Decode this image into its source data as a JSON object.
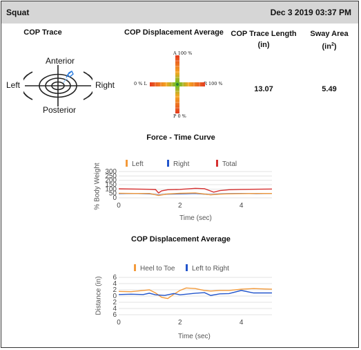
{
  "header": {
    "title": "Squat",
    "datetime": "Dec 3 2019 03:37 PM"
  },
  "columns": {
    "cop_trace": "COP Trace",
    "cop_displacement": "COP Displacement Average",
    "trace_length_label": "COP Trace Length (in)",
    "sway_area_label": "Sway Area (in",
    "sway_area_sup": "2",
    "sway_area_close": ")"
  },
  "target": {
    "anterior": "Anterior",
    "posterior": "Posterior",
    "left": "Left",
    "right": "Right"
  },
  "displacement_gauge": {
    "top": "A 100 %",
    "bottom": "P 0 %",
    "left": "0 %  L",
    "right": "R 100 %"
  },
  "values": {
    "trace_length": "13.07",
    "sway_area": "5.49"
  },
  "force_chart": {
    "title": "Force - Time Curve",
    "xlabel": "Time (sec)",
    "ylabel": "% Body Weight",
    "legend": [
      {
        "name": "Left",
        "color": "#f39a3a"
      },
      {
        "name": "Right",
        "color": "#2255cc"
      },
      {
        "name": "Total",
        "color": "#d63030"
      }
    ]
  },
  "cop_chart": {
    "title": "COP Displacement Average",
    "xlabel": "Time (sec)",
    "ylabel": "Distance (in)",
    "legend": [
      {
        "name": "Heel to Toe",
        "color": "#f39a3a"
      },
      {
        "name": "Left to Right",
        "color": "#2255cc"
      }
    ]
  },
  "chart_data": [
    {
      "type": "line",
      "title": "Force - Time Curve",
      "xlabel": "Time (sec)",
      "ylabel": "% Body Weight",
      "xlim": [
        0,
        5
      ],
      "ylim": [
        0,
        300
      ],
      "xticks": [
        0,
        2,
        4
      ],
      "yticks": [
        0,
        50,
        100,
        150,
        200,
        250,
        300
      ],
      "grid": true,
      "legend_position": "top",
      "series": [
        {
          "name": "Total",
          "color": "#d63030",
          "x": [
            0,
            0.5,
            1.0,
            1.2,
            1.3,
            1.4,
            1.6,
            2.0,
            2.5,
            2.8,
            3.0,
            3.1,
            3.3,
            3.6,
            4.0,
            4.5,
            5.0
          ],
          "y": [
            103,
            100,
            97,
            95,
            55,
            80,
            92,
            96,
            108,
            104,
            78,
            65,
            82,
            92,
            96,
            98,
            100
          ]
        },
        {
          "name": "Right",
          "color": "#2255cc",
          "x": [
            0,
            0.5,
            1.0,
            1.3,
            1.6,
            2.0,
            2.5,
            3.0,
            3.3,
            3.6,
            4.0,
            4.5,
            5.0
          ],
          "y": [
            48,
            50,
            46,
            32,
            42,
            45,
            50,
            36,
            44,
            48,
            50,
            48,
            50
          ]
        },
        {
          "name": "Left",
          "color": "#f39a3a",
          "x": [
            0,
            0.5,
            1.0,
            1.3,
            1.6,
            2.0,
            2.5,
            3.0,
            3.3,
            3.6,
            4.0,
            4.5,
            5.0
          ],
          "y": [
            52,
            50,
            50,
            28,
            44,
            51,
            56,
            34,
            42,
            46,
            48,
            50,
            50
          ]
        }
      ]
    },
    {
      "type": "line",
      "title": "COP Displacement Average",
      "xlabel": "Time (sec)",
      "ylabel": "Distance (in)",
      "xlim": [
        0,
        5
      ],
      "ylim": [
        -6,
        6
      ],
      "xticks": [
        0,
        2,
        4
      ],
      "yticks": [
        6,
        4,
        2,
        0,
        2,
        4,
        6
      ],
      "grid": true,
      "legend_position": "top",
      "series": [
        {
          "name": "Heel to Toe",
          "color": "#f39a3a",
          "x": [
            0,
            0.4,
            0.8,
            1.0,
            1.2,
            1.4,
            1.6,
            1.8,
            2.0,
            2.2,
            2.5,
            2.8,
            3.0,
            3.3,
            3.6,
            4.0,
            4.4,
            5.0
          ],
          "y": [
            1.5,
            1.4,
            1.8,
            2.0,
            1.0,
            -0.4,
            -0.8,
            0.6,
            1.8,
            2.6,
            2.4,
            1.8,
            1.6,
            1.8,
            1.8,
            2.2,
            2.4,
            2.2
          ]
        },
        {
          "name": "Left to Right",
          "color": "#2255cc",
          "x": [
            0,
            0.4,
            0.8,
            1.0,
            1.2,
            1.5,
            1.8,
            2.0,
            2.2,
            2.5,
            2.8,
            3.0,
            3.3,
            3.6,
            4.0,
            4.4,
            5.0
          ],
          "y": [
            0.5,
            0.6,
            0.5,
            0.9,
            0.4,
            0.2,
            0.8,
            0.4,
            0.6,
            0.9,
            1.1,
            0.2,
            0.7,
            0.8,
            1.8,
            1.0,
            1.0
          ]
        }
      ]
    }
  ]
}
